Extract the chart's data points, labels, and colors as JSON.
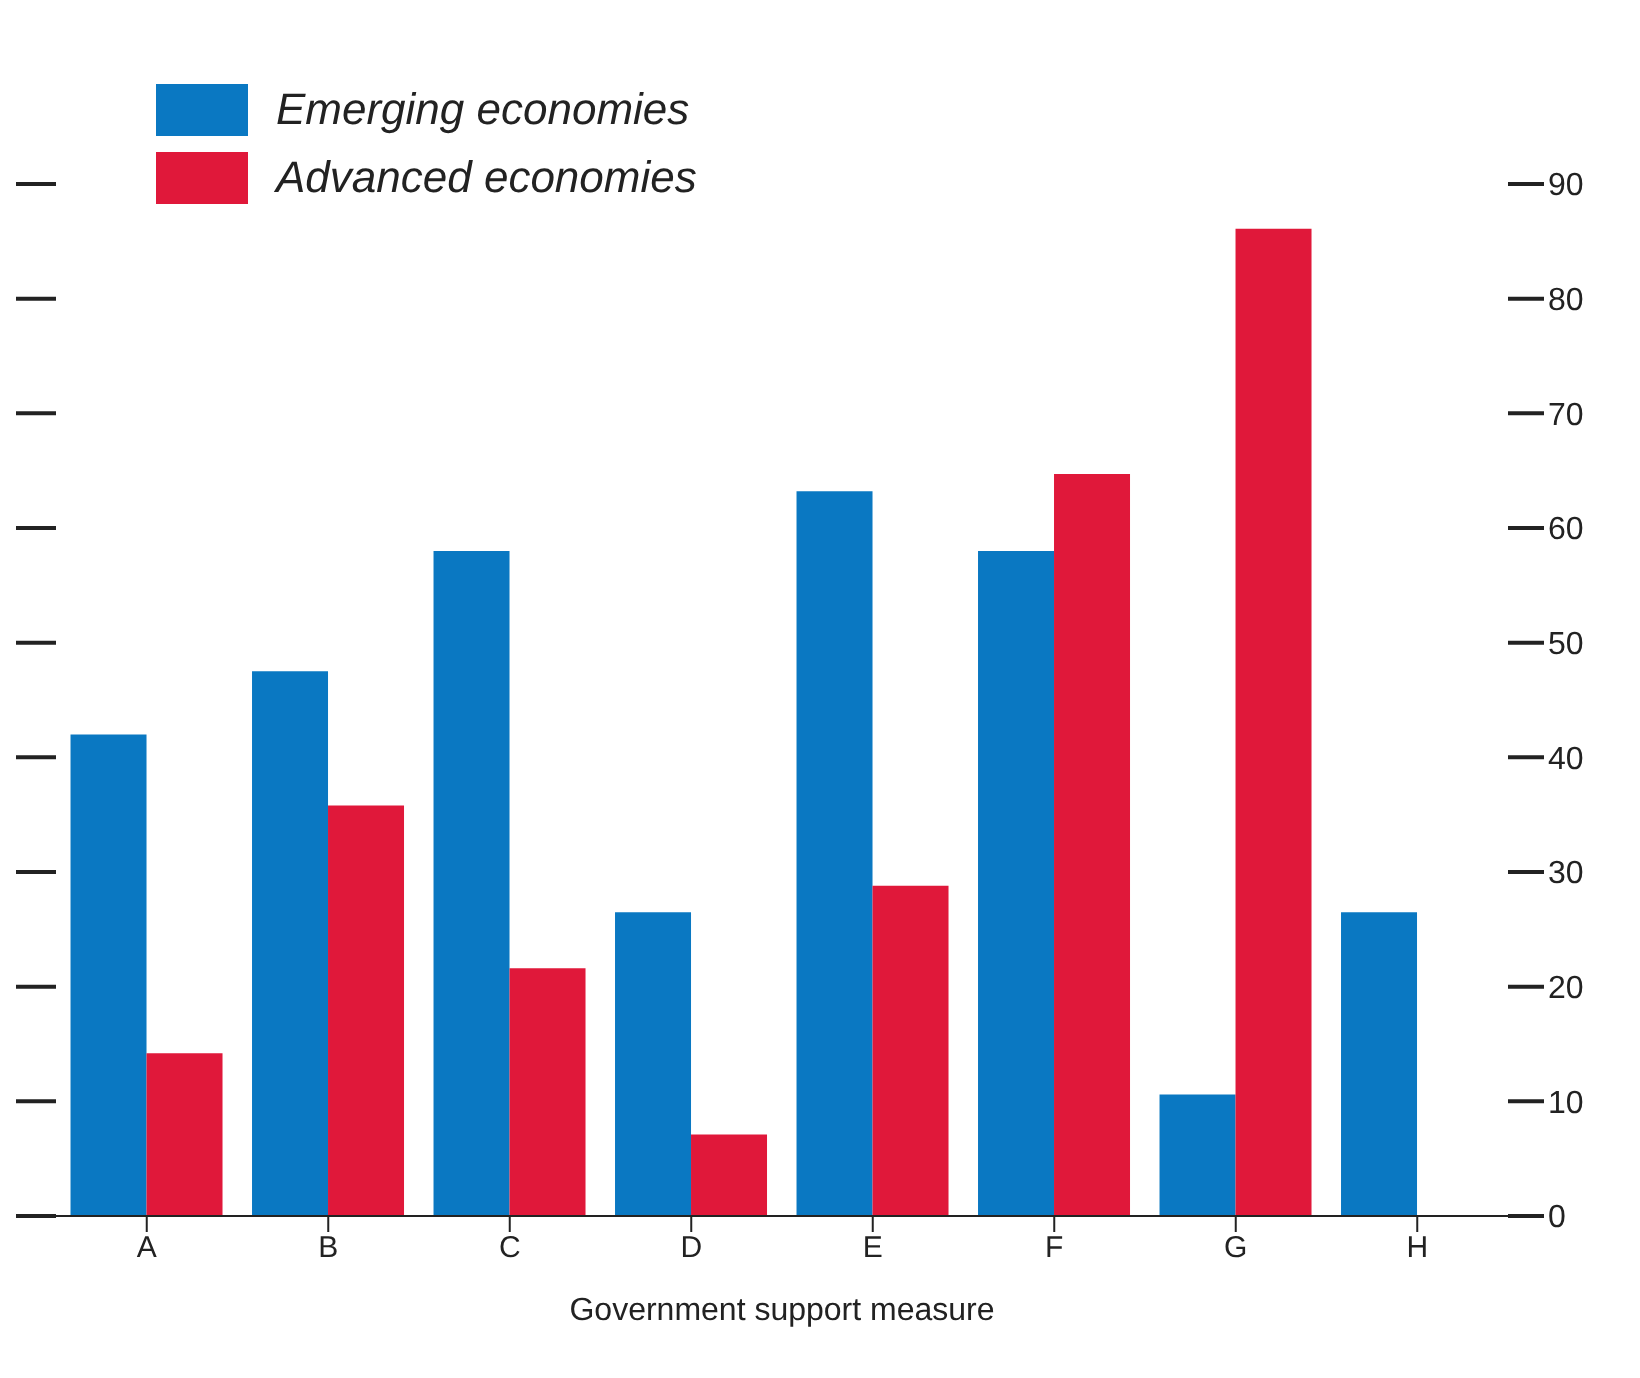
{
  "chart_data": {
    "type": "bar",
    "xlabel": "Government support measure",
    "categories": [
      "A",
      "B",
      "C",
      "D",
      "E",
      "F",
      "G",
      "H"
    ],
    "series": [
      {
        "name": "Emerging economies",
        "color": "#0a78c2",
        "values": [
          42,
          47.5,
          58,
          26.5,
          63.2,
          58,
          10.6,
          26.5
        ]
      },
      {
        "name": "Advanced economies",
        "color": "#e0183a",
        "values": [
          14.2,
          35.8,
          21.6,
          7.1,
          28.8,
          64.7,
          86.1,
          null
        ]
      }
    ],
    "ylim": [
      0,
      90
    ],
    "yticks": [
      0,
      10,
      20,
      30,
      40,
      50,
      60,
      70,
      80,
      90
    ],
    "legend": "top left"
  }
}
